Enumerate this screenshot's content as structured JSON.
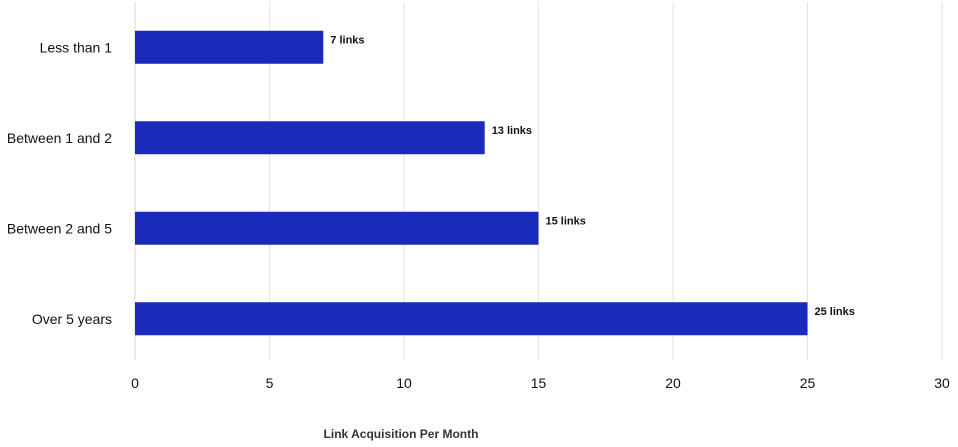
{
  "chart_data": {
    "type": "bar",
    "orientation": "horizontal",
    "categories": [
      "Less than 1",
      "Between 1 and 2",
      "Between 2 and 5",
      "Over 5 years"
    ],
    "values": [
      7,
      13,
      15,
      25
    ],
    "data_labels": [
      "7 links",
      "13 links",
      "15 links",
      "25 links"
    ],
    "title": "",
    "xlabel": "Link Acquisition Per Month",
    "ylabel": "",
    "xlim": [
      0,
      30
    ],
    "x_ticks": [
      "0",
      "5",
      "10",
      "15",
      "20",
      "25",
      "30"
    ],
    "grid": true,
    "legend": "none",
    "bar_color": "#1a2bbc"
  }
}
